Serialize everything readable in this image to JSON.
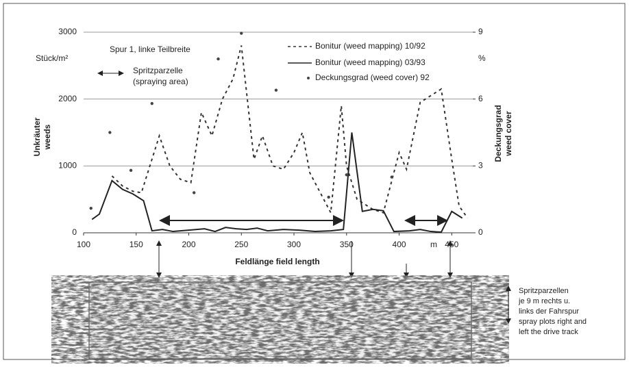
{
  "chart_data": {
    "type": "line",
    "annotations": [
      "Spur 1, linke Teilbreite",
      "Spritzparzelle",
      "(spraying area)"
    ],
    "y_unit": "Stück/m²",
    "y2_unit": "%",
    "ylabel_lines": [
      "Unkräuter",
      "weeds"
    ],
    "y2label_lines": [
      "Deckungsgrad",
      "weed cover"
    ],
    "xlabel": "Feldlänge field length",
    "x_unit": "m",
    "side_note": [
      "Spritzparzellen",
      "je 9 m  rechts u.",
      "links der Fahrspur",
      "spray plots right and",
      "left the drive track"
    ],
    "xlim": [
      100,
      470
    ],
    "xticks": [
      100,
      150,
      200,
      250,
      300,
      350,
      400,
      450
    ],
    "ylim": [
      0,
      3000
    ],
    "yticks": [
      0,
      1000,
      2000,
      3000
    ],
    "y2lim": [
      0,
      9
    ],
    "y2ticks": [
      0,
      3,
      6,
      9
    ],
    "grid": true,
    "series": [
      {
        "name": "Bonitur (weed mapping) 10/92",
        "type": "line",
        "style": "dashed",
        "color": "#333333",
        "x": [
          127,
          137,
          147,
          155,
          163,
          172,
          182,
          192,
          202,
          212,
          222,
          232,
          242,
          250,
          262,
          270,
          280,
          290,
          300,
          308,
          315,
          325,
          335,
          345,
          350,
          360,
          375,
          385,
          400,
          407,
          420,
          440,
          450,
          457,
          465
        ],
        "values": [
          850,
          700,
          620,
          600,
          1000,
          1450,
          1000,
          800,
          750,
          1800,
          1450,
          2000,
          2300,
          2800,
          1100,
          1450,
          1000,
          950,
          1200,
          1500,
          900,
          600,
          300,
          1900,
          1000,
          500,
          350,
          300,
          1200,
          950,
          1950,
          2150,
          1100,
          400,
          220
        ]
      },
      {
        "name": "Bonitur (weed mapping)  03/93",
        "type": "line",
        "style": "solid",
        "color": "#222222",
        "x": [
          108,
          115,
          127,
          137,
          147,
          157,
          165,
          175,
          185,
          200,
          215,
          225,
          235,
          245,
          255,
          265,
          275,
          290,
          305,
          320,
          335,
          347,
          355,
          365,
          375,
          385,
          395,
          410,
          420,
          430,
          440,
          450,
          460
        ],
        "values": [
          200,
          280,
          780,
          650,
          580,
          480,
          30,
          50,
          20,
          40,
          60,
          20,
          80,
          60,
          50,
          70,
          30,
          50,
          40,
          20,
          30,
          50,
          1500,
          320,
          350,
          330,
          20,
          30,
          50,
          20,
          10,
          320,
          220
        ]
      },
      {
        "name": "Deckungsgrad (weed cover) 92",
        "type": "scatter",
        "axis": "y2",
        "color": "#444444",
        "x": [
          107,
          125,
          145,
          165,
          205,
          228,
          250,
          283,
          333,
          350,
          393
        ],
        "values": [
          1.1,
          4.5,
          2.8,
          5.8,
          1.8,
          7.8,
          8.95,
          6.4,
          1.6,
          2.6,
          2.5
        ]
      }
    ]
  }
}
